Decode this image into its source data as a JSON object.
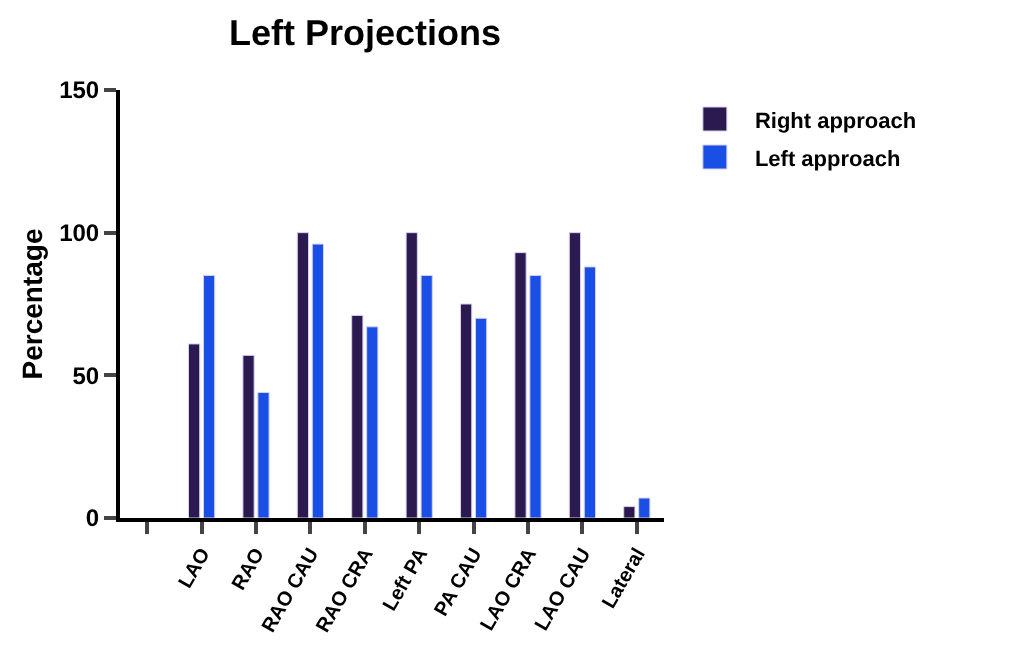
{
  "chart_data": {
    "type": "bar",
    "title": "Left Projections",
    "ylabel": "Percentage",
    "categories": [
      null,
      "LAO",
      "RAO",
      "RAO CAU",
      "RAO CRA",
      "Left PA",
      "PA CAU",
      "LAO CRA",
      "LAO CAU",
      "Lateral"
    ],
    "series": [
      {
        "name": "Right approach",
        "color": "#2b1a4f",
        "values": [
          null,
          61,
          57,
          100,
          71,
          100,
          75,
          93,
          100,
          4
        ]
      },
      {
        "name": "Left approach",
        "color": "#1a4fe6",
        "values": [
          null,
          85,
          44,
          96,
          67,
          85,
          70,
          85,
          88,
          7
        ]
      }
    ],
    "ylim": [
      0,
      150
    ],
    "yticks": [
      0,
      50,
      100,
      150
    ],
    "grid": false,
    "legend": "top right"
  }
}
